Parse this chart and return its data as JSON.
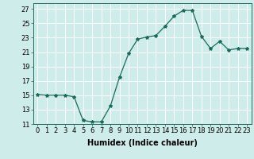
{
  "x": [
    0,
    1,
    2,
    3,
    4,
    5,
    6,
    7,
    8,
    9,
    10,
    11,
    12,
    13,
    14,
    15,
    16,
    17,
    18,
    19,
    20,
    21,
    22,
    23
  ],
  "y": [
    15.1,
    15.0,
    15.0,
    15.0,
    14.8,
    11.5,
    11.3,
    11.3,
    13.5,
    17.5,
    20.8,
    22.8,
    23.1,
    23.3,
    24.6,
    26.0,
    26.8,
    26.8,
    23.2,
    21.5,
    22.5,
    21.3,
    21.5,
    21.5
  ],
  "line_color": "#1a6b5a",
  "marker": "*",
  "marker_size": 3,
  "bg_color": "#ceecea",
  "grid_color": "#ffffff",
  "xlabel": "Humidex (Indice chaleur)",
  "ylabel": "",
  "xlim": [
    -0.5,
    23.5
  ],
  "ylim": [
    11,
    27.8
  ],
  "yticks": [
    11,
    13,
    15,
    17,
    19,
    21,
    23,
    25,
    27
  ],
  "xticks": [
    0,
    1,
    2,
    3,
    4,
    5,
    6,
    7,
    8,
    9,
    10,
    11,
    12,
    13,
    14,
    15,
    16,
    17,
    18,
    19,
    20,
    21,
    22,
    23
  ],
  "label_fontsize": 7,
  "tick_fontsize": 6
}
